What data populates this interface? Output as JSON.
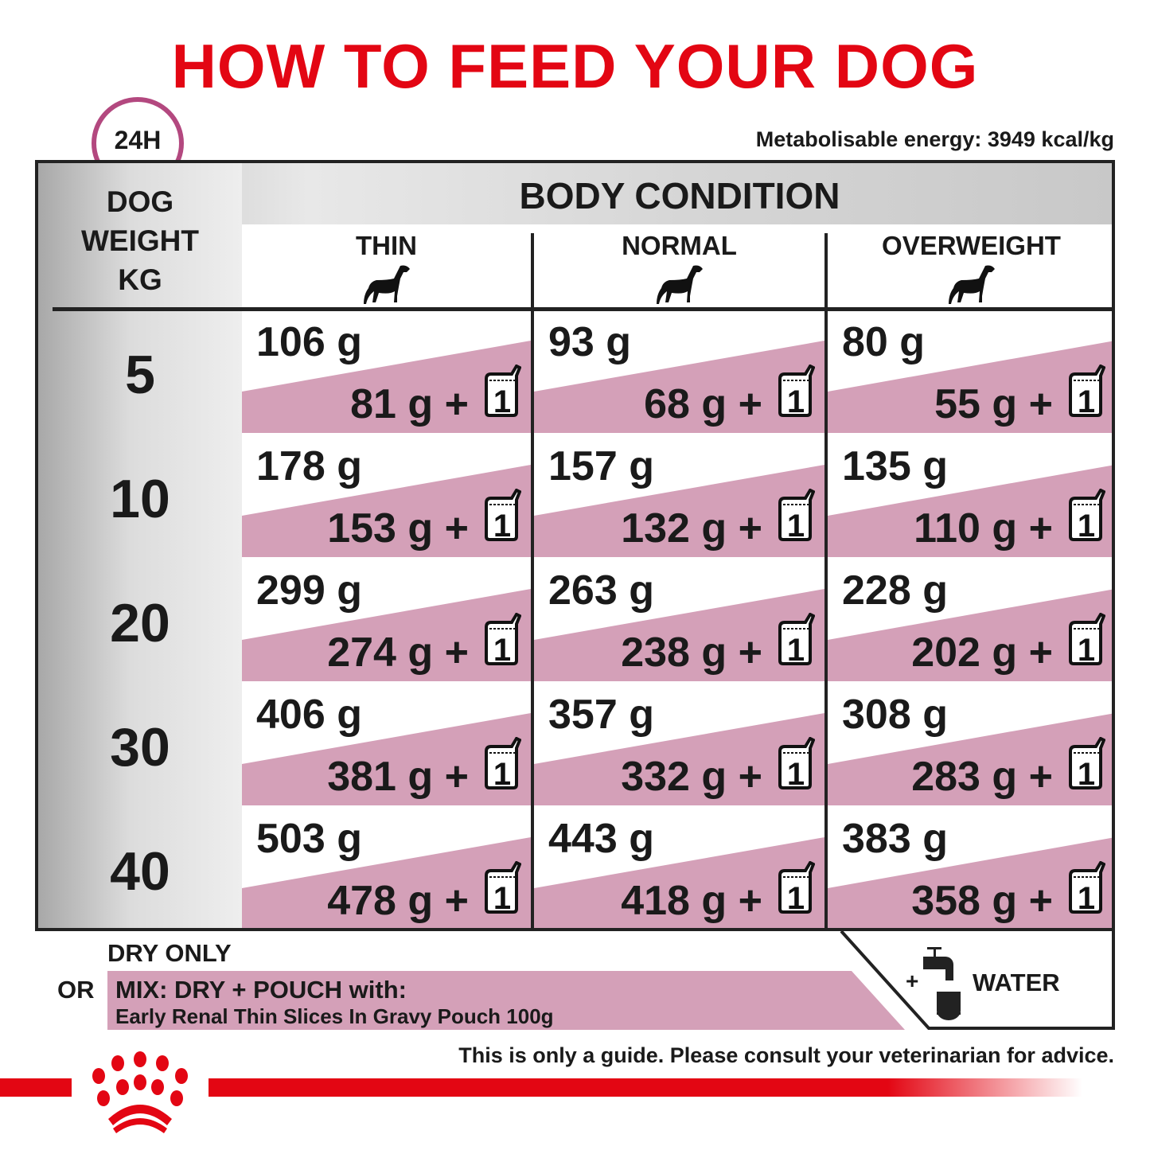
{
  "title": "HOW TO FEED YOUR DOG",
  "clock_label": "24H",
  "energy": "Metabolisable energy: 3949 kcal/kg",
  "header": {
    "weight": "DOG\nWEIGHT\nKG",
    "body_condition": "BODY CONDITION",
    "columns": [
      "THIN",
      "NORMAL",
      "OVERWEIGHT"
    ]
  },
  "pouch_count": "1",
  "rows": [
    {
      "weight": "5",
      "cells": [
        {
          "dry": "106 g",
          "mix": "81 g +"
        },
        {
          "dry": "93 g",
          "mix": "68 g +"
        },
        {
          "dry": "80 g",
          "mix": "55 g +"
        }
      ]
    },
    {
      "weight": "10",
      "cells": [
        {
          "dry": "178 g",
          "mix": "153 g +"
        },
        {
          "dry": "157 g",
          "mix": "132 g +"
        },
        {
          "dry": "135 g",
          "mix": "110 g +"
        }
      ]
    },
    {
      "weight": "20",
      "cells": [
        {
          "dry": "299 g",
          "mix": "274 g +"
        },
        {
          "dry": "263 g",
          "mix": "238 g +"
        },
        {
          "dry": "228 g",
          "mix": "202 g +"
        }
      ]
    },
    {
      "weight": "30",
      "cells": [
        {
          "dry": "406 g",
          "mix": "381 g +"
        },
        {
          "dry": "357 g",
          "mix": "332 g +"
        },
        {
          "dry": "308 g",
          "mix": "283 g +"
        }
      ]
    },
    {
      "weight": "40",
      "cells": [
        {
          "dry": "503 g",
          "mix": "478 g +"
        },
        {
          "dry": "443 g",
          "mix": "418 g +"
        },
        {
          "dry": "383 g",
          "mix": "358 g +"
        }
      ]
    }
  ],
  "legend": {
    "dry_only": "DRY ONLY",
    "or": "OR",
    "mix_line1": "MIX: DRY + POUCH with:",
    "mix_line2": "Early Renal Thin Slices In Gravy Pouch 100g",
    "water_plus": "+",
    "water": "WATER"
  },
  "disclaimer": "This is only a guide. Please consult your veterinarian for advice.",
  "colors": {
    "brand_red": "#e30613",
    "mix_pink": "#d4a0b8",
    "clock_purple": "#b3487f"
  },
  "brand_logo": "Royal Canin crown"
}
